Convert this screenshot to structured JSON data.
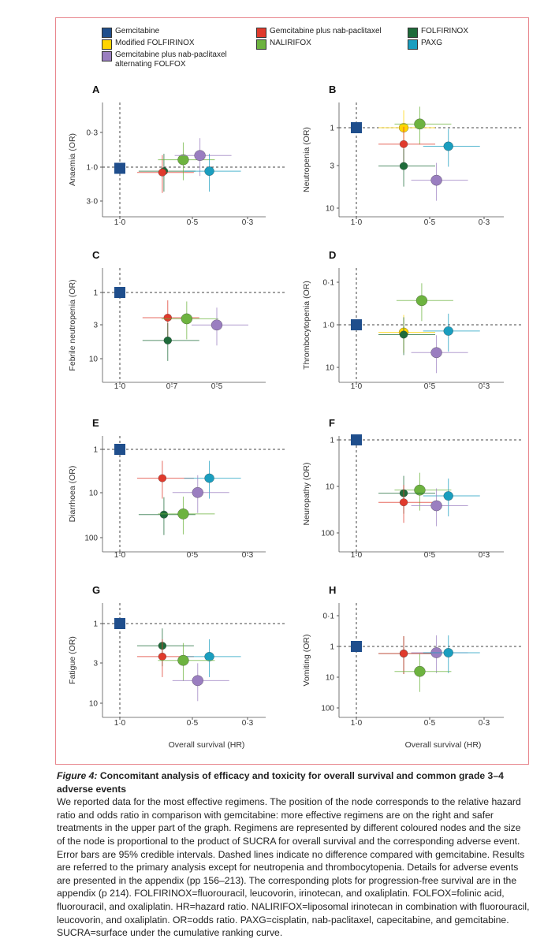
{
  "legend": [
    {
      "label": "Gemcitabine",
      "color": "#1f4e8c"
    },
    {
      "label": "Modified FOLFIRINOX",
      "color": "#ffd400"
    },
    {
      "label": "Gemcitabine plus nab-paclitaxel alternating FOLFOX",
      "label_line1": "Gemcitabine plus nab-paclitaxel",
      "label_line2": "alternating FOLFOX",
      "color": "#9a7ec0"
    },
    {
      "label": "Gemcitabine plus nab-paclitaxel",
      "color": "#e03a2c"
    },
    {
      "label": "NALIRIFOX",
      "color": "#6db33f"
    },
    {
      "label": "FOLFIRINOX",
      "color": "#1e6b3a"
    },
    {
      "label": "PAXG",
      "color": "#1a9ebf"
    }
  ],
  "chart_data": [
    {
      "panel": "A",
      "type": "scatter",
      "ylabel": "Anaemia (OR)",
      "xlabel": "",
      "yscale": "log-inverted",
      "xticks": [
        "1·0",
        "0·5",
        "0·3"
      ],
      "yticks": [
        "0·3",
        "1·0",
        "3·0"
      ],
      "points": [
        {
          "series": "Gemcitabine",
          "hr": 1.0,
          "or": 1.0
        },
        {
          "series": "FOLFIRINOX",
          "hr": 0.66,
          "or": 1.1
        },
        {
          "series": "Gemcitabine plus nab-paclitaxel",
          "hr": 0.67,
          "or": 1.15
        },
        {
          "series": "NALIRIFOX",
          "hr": 0.55,
          "or": 0.75
        },
        {
          "series": "Gemcitabine plus nab-paclitaxel alternating FOLFOX",
          "hr": 0.47,
          "or": 0.65
        },
        {
          "series": "PAXG",
          "hr": 0.43,
          "or": 1.1
        }
      ]
    },
    {
      "panel": "B",
      "type": "scatter",
      "ylabel": "Neutropenia (OR)",
      "xlabel": "",
      "yscale": "log-inverted",
      "xticks": [
        "1·0",
        "0·5",
        "0·3"
      ],
      "yticks": [
        "1",
        "3",
        "10"
      ],
      "points": [
        {
          "series": "Gemcitabine",
          "hr": 1.0,
          "or": 1.0
        },
        {
          "series": "Modified FOLFIRINOX",
          "hr": 0.64,
          "or": 1.0
        },
        {
          "series": "NALIRIFOX",
          "hr": 0.55,
          "or": 0.9
        },
        {
          "series": "Gemcitabine plus nab-paclitaxel",
          "hr": 0.64,
          "or": 1.6
        },
        {
          "series": "PAXG",
          "hr": 0.42,
          "or": 1.7
        },
        {
          "series": "FOLFIRINOX",
          "hr": 0.64,
          "or": 3.0
        },
        {
          "series": "Gemcitabine plus nab-paclitaxel alternating FOLFOX",
          "hr": 0.47,
          "or": 4.5
        }
      ]
    },
    {
      "panel": "C",
      "type": "scatter",
      "ylabel": "Febrile neutropenia (OR)",
      "xlabel": "",
      "yscale": "log-inverted",
      "xticks": [
        "1·0",
        "0·7",
        "0·5"
      ],
      "yticks": [
        "1",
        "3",
        "10"
      ],
      "points": [
        {
          "series": "Gemcitabine",
          "hr": 1.0,
          "or": 1.0
        },
        {
          "series": "Gemcitabine plus nab-paclitaxel",
          "hr": 0.71,
          "or": 2.4
        },
        {
          "series": "NALIRIFOX",
          "hr": 0.62,
          "or": 2.5
        },
        {
          "series": "Gemcitabine plus nab-paclitaxel alternating FOLFOX",
          "hr": 0.5,
          "or": 3.1
        },
        {
          "series": "FOLFIRINOX",
          "hr": 0.71,
          "or": 5.3
        }
      ]
    },
    {
      "panel": "D",
      "type": "scatter",
      "ylabel": "Thrombocytopenia (OR)",
      "xlabel": "",
      "yscale": "log-inverted",
      "xticks": [
        "1·0",
        "0·5",
        "0·3"
      ],
      "yticks": [
        "0·1",
        "1·0",
        "10"
      ],
      "points": [
        {
          "series": "Gemcitabine",
          "hr": 1.0,
          "or": 1.0
        },
        {
          "series": "NALIRIFOX",
          "hr": 0.54,
          "or": 0.27
        },
        {
          "series": "Modified FOLFIRINOX",
          "hr": 0.64,
          "or": 1.5
        },
        {
          "series": "FOLFIRINOX",
          "hr": 0.64,
          "or": 1.7
        },
        {
          "series": "PAXG",
          "hr": 0.42,
          "or": 1.4
        },
        {
          "series": "Gemcitabine plus nab-paclitaxel alternating FOLFOX",
          "hr": 0.47,
          "or": 4.5
        }
      ]
    },
    {
      "panel": "E",
      "type": "scatter",
      "ylabel": "Diarrhoea (OR)",
      "xlabel": "",
      "yscale": "log-inverted",
      "xticks": [
        "1·0",
        "0·5",
        "0·3"
      ],
      "yticks": [
        "1",
        "10",
        "100"
      ],
      "points": [
        {
          "series": "Gemcitabine",
          "hr": 1.0,
          "or": 1.0
        },
        {
          "series": "Gemcitabine plus nab-paclitaxel",
          "hr": 0.67,
          "or": 4.5
        },
        {
          "series": "PAXG",
          "hr": 0.43,
          "or": 4.5
        },
        {
          "series": "Gemcitabine plus nab-paclitaxel alternating FOLFOX",
          "hr": 0.48,
          "or": 9.5
        },
        {
          "series": "FOLFIRINOX",
          "hr": 0.66,
          "or": 30
        },
        {
          "series": "NALIRIFOX",
          "hr": 0.55,
          "or": 29
        }
      ]
    },
    {
      "panel": "F",
      "type": "scatter",
      "ylabel": "Neuropathy (OR)",
      "xlabel": "",
      "yscale": "log-inverted",
      "xticks": [
        "1·0",
        "0·5",
        "0·3"
      ],
      "yticks": [
        "1",
        "10",
        "100"
      ],
      "points": [
        {
          "series": "Gemcitabine",
          "hr": 1.0,
          "or": 1.0
        },
        {
          "series": "NALIRIFOX",
          "hr": 0.55,
          "or": 12
        },
        {
          "series": "FOLFIRINOX",
          "hr": 0.64,
          "or": 14
        },
        {
          "series": "PAXG",
          "hr": 0.42,
          "or": 16
        },
        {
          "series": "Gemcitabine plus nab-paclitaxel",
          "hr": 0.64,
          "or": 22
        },
        {
          "series": "Gemcitabine plus nab-paclitaxel alternating FOLFOX",
          "hr": 0.47,
          "or": 26
        }
      ]
    },
    {
      "panel": "G",
      "type": "scatter",
      "ylabel": "Fatigue (OR)",
      "xlabel": "Overall survival (HR)",
      "yscale": "log-inverted",
      "xticks": [
        "1·0",
        "0·5",
        "0·3"
      ],
      "yticks": [
        "1",
        "3",
        "10"
      ],
      "points": [
        {
          "series": "Gemcitabine",
          "hr": 1.0,
          "or": 1.0
        },
        {
          "series": "FOLFIRINOX",
          "hr": 0.67,
          "or": 1.9
        },
        {
          "series": "Gemcitabine plus nab-paclitaxel",
          "hr": 0.67,
          "or": 2.6
        },
        {
          "series": "PAXG",
          "hr": 0.43,
          "or": 2.6
        },
        {
          "series": "NALIRIFOX",
          "hr": 0.55,
          "or": 2.9
        },
        {
          "series": "Gemcitabine plus nab-paclitaxel alternating FOLFOX",
          "hr": 0.48,
          "or": 5.2
        }
      ]
    },
    {
      "panel": "H",
      "type": "scatter",
      "ylabel": "Vomiting (OR)",
      "xlabel": "Overall survival (HR)",
      "yscale": "log-inverted",
      "xticks": [
        "1·0",
        "0·5",
        "0·3"
      ],
      "yticks": [
        "0·1",
        "1",
        "10",
        "100"
      ],
      "points": [
        {
          "series": "Gemcitabine",
          "hr": 1.0,
          "or": 1.0
        },
        {
          "series": "FOLFIRINOX",
          "hr": 0.64,
          "or": 1.7
        },
        {
          "series": "Gemcitabine plus nab-paclitaxel",
          "hr": 0.64,
          "or": 1.7
        },
        {
          "series": "Gemcitabine plus nab-paclitaxel alternating FOLFOX",
          "hr": 0.47,
          "or": 1.6
        },
        {
          "series": "PAXG",
          "hr": 0.42,
          "or": 1.6
        },
        {
          "series": "NALIRIFOX",
          "hr": 0.55,
          "or": 6.5
        }
      ]
    }
  ],
  "caption": {
    "fig_label": "Figure 4:",
    "title": "Concomitant analysis of efficacy and toxicity for overall survival and common grade 3–4 adverse events",
    "body": "We reported data for the most effective regimens. The position of the node corresponds to the relative hazard ratio and odds ratio in comparison with gemcitabine: more effective regimens are on the right and safer treatments in the upper part of the graph. Regimens are represented by different coloured nodes and the size of the node is proportional to the product of SUCRA for overall survival and the corresponding adverse event. Error bars are 95% credible intervals. Dashed lines indicate no difference compared with gemcitabine. Results are referred to the primary analysis except for neutropenia and thrombocytopenia. Details for adverse events are presented in the appendix (pp 156–213). The corresponding plots for progression-free survival are in the appendix (p 214). FOLFIRINOX=fluorouracil, leucovorin, irinotecan, and oxaliplatin. FOLFOX=folinic acid, fluorouracil, and oxaliplatin. HR=hazard ratio. NALIRIFOX=liposomal irinotecan in combination with fluorouracil, leucovorin, and oxaliplatin. OR=odds ratio. PAXG=cisplatin, nab-paclitaxel, capecitabine, and gemcitabine. SUCRA=surface under the cumulative ranking curve."
  }
}
